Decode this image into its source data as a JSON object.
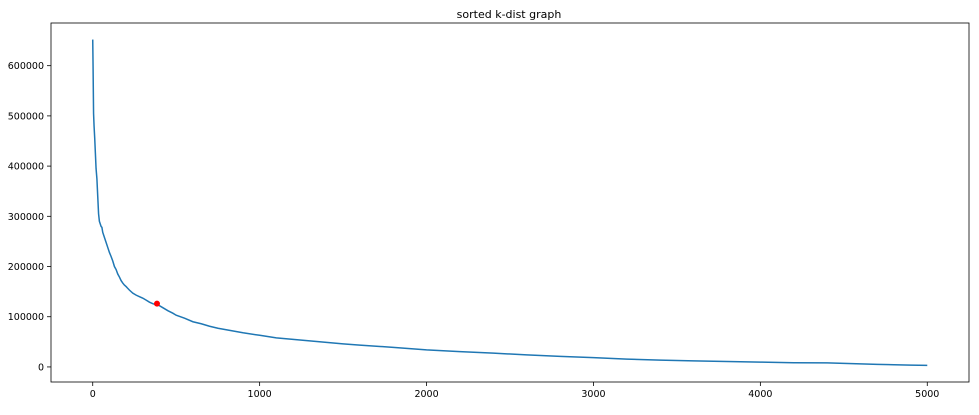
{
  "chart_data": {
    "type": "line",
    "title": "sorted k-dist graph",
    "xlabel": "",
    "ylabel": "",
    "xlim": [
      -250,
      5250
    ],
    "ylim": [
      -30000,
      685000
    ],
    "x_ticks": [
      0,
      1000,
      2000,
      3000,
      4000,
      5000
    ],
    "x_tick_labels": [
      "0",
      "1000",
      "2000",
      "3000",
      "4000",
      "5000"
    ],
    "y_ticks": [
      0,
      100000,
      200000,
      300000,
      400000,
      500000,
      600000
    ],
    "y_tick_labels": [
      "0",
      "100000",
      "200000",
      "300000",
      "400000",
      "500000",
      "600000"
    ],
    "grid": false,
    "legend": false,
    "series": [
      {
        "color": "#1f77b4",
        "x": [
          0,
          2,
          5,
          8,
          12,
          16,
          20,
          25,
          30,
          35,
          40,
          45,
          50,
          55,
          60,
          70,
          80,
          90,
          100,
          110,
          120,
          130,
          140,
          150,
          160,
          170,
          180,
          190,
          200,
          220,
          240,
          260,
          280,
          300,
          320,
          340,
          360,
          380,
          400,
          420,
          450,
          480,
          500,
          550,
          600,
          650,
          700,
          750,
          800,
          900,
          1000,
          1100,
          1200,
          1300,
          1400,
          1500,
          1600,
          1800,
          2000,
          2200,
          2400,
          2600,
          2800,
          3000,
          3200,
          3400,
          3600,
          3800,
          4000,
          4200,
          4400,
          4450,
          4500,
          4600,
          4700,
          4800,
          4900,
          5000
        ],
        "y": [
          652000,
          600000,
          505000,
          480000,
          455000,
          425000,
          395000,
          375000,
          340000,
          305000,
          290000,
          285000,
          280000,
          278000,
          268000,
          258000,
          248000,
          238000,
          228000,
          220000,
          211000,
          200000,
          194000,
          185000,
          179000,
          172000,
          167000,
          163000,
          160000,
          153000,
          147000,
          143000,
          140000,
          137000,
          133000,
          129000,
          126000,
          124000,
          122000,
          118000,
          112000,
          107000,
          103000,
          97000,
          90000,
          86000,
          81000,
          77000,
          74000,
          68000,
          63000,
          58000,
          55000,
          52000,
          49000,
          46000,
          43500,
          39000,
          34000,
          30500,
          27500,
          24000,
          21000,
          18500,
          15500,
          13500,
          12000,
          10800,
          9600,
          8400,
          8000,
          7600,
          7000,
          6000,
          5200,
          4400,
          3700,
          3200
        ]
      }
    ],
    "highlight_point": {
      "x": 385,
      "y": 126000,
      "color": "#ff0000"
    }
  }
}
